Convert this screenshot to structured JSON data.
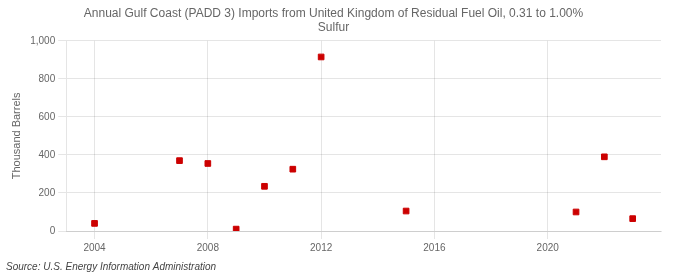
{
  "chart_data": {
    "type": "scatter",
    "title": "Annual Gulf Coast (PADD 3) Imports from United Kingdom of Residual Fuel Oil, 0.31 to 1.00%\nSulfur",
    "y_label": "Thousand Barrels",
    "annotations": [
      "Source: U.S. Energy Information Administration"
    ],
    "x": [
      2004,
      2007,
      2008,
      2009,
      2010,
      2011,
      2012,
      2015,
      2021,
      2022,
      2023
    ],
    "values": [
      40,
      370,
      355,
      10,
      235,
      325,
      915,
      105,
      100,
      390,
      65
    ],
    "color": "#cc0000",
    "marker": "square",
    "xlim": [
      2003,
      2024
    ],
    "xticks": [
      2004,
      2008,
      2012,
      2016,
      2020
    ],
    "ylim": [
      0,
      1000
    ],
    "yticks": [
      0,
      200,
      400,
      600,
      800,
      {
        "value": 1000,
        "label": "1,000"
      }
    ],
    "grid": true
  }
}
